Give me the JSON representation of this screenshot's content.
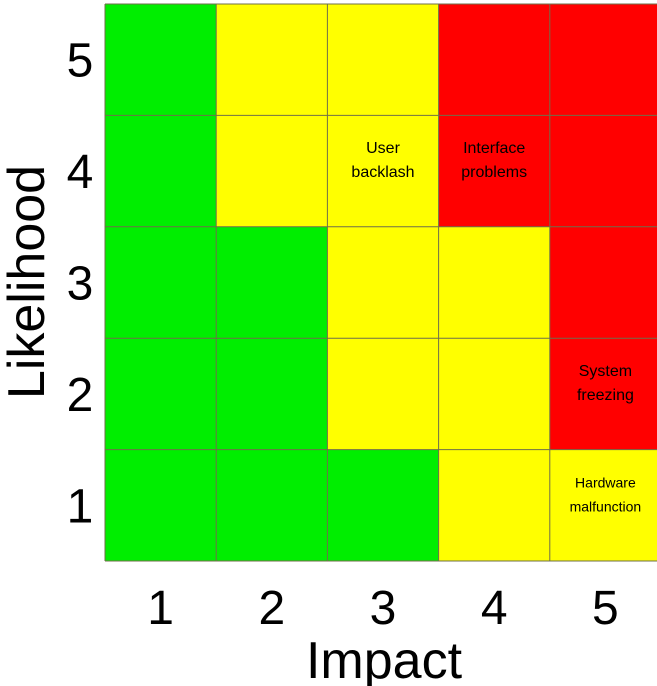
{
  "chart_data": {
    "type": "heatmap",
    "xlabel": "Impact",
    "ylabel": "Likelihood",
    "x_ticks": [
      "1",
      "2",
      "3",
      "4",
      "5"
    ],
    "y_ticks": [
      "1",
      "2",
      "3",
      "4",
      "5"
    ],
    "colors": {
      "G": "#00ee00",
      "Y": "#ffff00",
      "R": "#ff0000"
    },
    "grid_rows_top_to_bottom": [
      {
        "likelihood": "5",
        "cells": [
          "G",
          "Y",
          "Y",
          "R",
          "R"
        ]
      },
      {
        "likelihood": "4",
        "cells": [
          "G",
          "Y",
          "Y",
          "R",
          "R"
        ]
      },
      {
        "likelihood": "3",
        "cells": [
          "G",
          "G",
          "Y",
          "Y",
          "R"
        ]
      },
      {
        "likelihood": "2",
        "cells": [
          "G",
          "G",
          "Y",
          "Y",
          "R"
        ]
      },
      {
        "likelihood": "1",
        "cells": [
          "G",
          "G",
          "G",
          "Y",
          "Y"
        ]
      }
    ],
    "annotations": [
      {
        "impact": 3,
        "likelihood": 4,
        "lines": [
          "User",
          "backlash"
        ]
      },
      {
        "impact": 4,
        "likelihood": 4,
        "lines": [
          "Interface",
          "problems"
        ]
      },
      {
        "impact": 5,
        "likelihood": 2,
        "lines": [
          "System",
          "freezing"
        ]
      },
      {
        "impact": 5,
        "likelihood": 1,
        "lines": [
          "Hardware",
          "malfunction"
        ]
      }
    ]
  }
}
